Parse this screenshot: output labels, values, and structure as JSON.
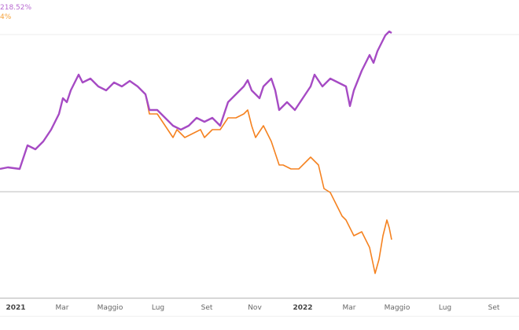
{
  "chart_data": {
    "type": "line",
    "title": "",
    "xlabel": "",
    "ylabel": "",
    "x_unit": "days since 2021-01-01",
    "y_unit": "percent change",
    "ylim": [
      -135,
      244
    ],
    "xlim": [
      -20,
      640
    ],
    "gridlines_y": [
      0,
      200
    ],
    "x_ticks": [
      {
        "day": 0,
        "label": "2021",
        "major": true
      },
      {
        "day": 59,
        "label": "Mar"
      },
      {
        "day": 120,
        "label": "Maggio"
      },
      {
        "day": 181,
        "label": "Lug"
      },
      {
        "day": 243,
        "label": "Set"
      },
      {
        "day": 304,
        "label": "Nov"
      },
      {
        "day": 365,
        "label": "2022",
        "major": true
      },
      {
        "day": 424,
        "label": "Mar"
      },
      {
        "day": 485,
        "label": "Maggio"
      },
      {
        "day": 546,
        "label": "Lug"
      },
      {
        "day": 608,
        "label": "Set"
      }
    ],
    "legend": [
      "218.52%",
      "4%"
    ],
    "series": [
      {
        "name": "purple",
        "color": "#a64bc4",
        "points": [
          [
            -20,
            29
          ],
          [
            -10,
            31
          ],
          [
            5,
            29
          ],
          [
            10,
            44
          ],
          [
            15,
            59
          ],
          [
            25,
            54
          ],
          [
            35,
            64
          ],
          [
            45,
            79
          ],
          [
            55,
            99
          ],
          [
            60,
            119
          ],
          [
            65,
            114
          ],
          [
            70,
            129
          ],
          [
            80,
            149
          ],
          [
            85,
            139
          ],
          [
            95,
            144
          ],
          [
            105,
            134
          ],
          [
            115,
            129
          ],
          [
            125,
            139
          ],
          [
            135,
            134
          ],
          [
            145,
            141
          ],
          [
            155,
            134
          ],
          [
            165,
            124
          ],
          [
            170,
            104
          ],
          [
            180,
            104
          ],
          [
            190,
            94
          ],
          [
            200,
            84
          ],
          [
            210,
            79
          ],
          [
            220,
            84
          ],
          [
            230,
            94
          ],
          [
            240,
            89
          ],
          [
            250,
            94
          ],
          [
            260,
            84
          ],
          [
            270,
            114
          ],
          [
            280,
            124
          ],
          [
            290,
            134
          ],
          [
            295,
            142
          ],
          [
            300,
            129
          ],
          [
            310,
            119
          ],
          [
            315,
            134
          ],
          [
            325,
            144
          ],
          [
            330,
            129
          ],
          [
            335,
            104
          ],
          [
            345,
            114
          ],
          [
            355,
            104
          ],
          [
            365,
            119
          ],
          [
            375,
            134
          ],
          [
            380,
            149
          ],
          [
            390,
            134
          ],
          [
            400,
            144
          ],
          [
            410,
            139
          ],
          [
            420,
            134
          ],
          [
            425,
            109
          ],
          [
            430,
            129
          ],
          [
            440,
            154
          ],
          [
            450,
            174
          ],
          [
            455,
            164
          ],
          [
            460,
            179
          ],
          [
            465,
            189
          ],
          [
            470,
            199
          ],
          [
            475,
            204
          ],
          [
            478,
            202
          ]
        ]
      },
      {
        "name": "orange",
        "color": "#f58220",
        "points": [
          [
            -20,
            29
          ],
          [
            -10,
            31
          ],
          [
            5,
            29
          ],
          [
            10,
            44
          ],
          [
            15,
            59
          ],
          [
            25,
            54
          ],
          [
            35,
            64
          ],
          [
            45,
            79
          ],
          [
            55,
            99
          ],
          [
            60,
            119
          ],
          [
            65,
            114
          ],
          [
            70,
            129
          ],
          [
            80,
            149
          ],
          [
            85,
            139
          ],
          [
            95,
            144
          ],
          [
            105,
            134
          ],
          [
            115,
            129
          ],
          [
            125,
            139
          ],
          [
            135,
            134
          ],
          [
            145,
            141
          ],
          [
            155,
            134
          ],
          [
            165,
            124
          ],
          [
            170,
            99
          ],
          [
            180,
            99
          ],
          [
            190,
            84
          ],
          [
            200,
            69
          ],
          [
            205,
            79
          ],
          [
            215,
            69
          ],
          [
            225,
            74
          ],
          [
            235,
            79
          ],
          [
            240,
            69
          ],
          [
            250,
            79
          ],
          [
            260,
            79
          ],
          [
            270,
            94
          ],
          [
            280,
            94
          ],
          [
            290,
            99
          ],
          [
            295,
            104
          ],
          [
            300,
            84
          ],
          [
            305,
            69
          ],
          [
            315,
            84
          ],
          [
            325,
            64
          ],
          [
            335,
            34
          ],
          [
            340,
            34
          ],
          [
            350,
            29
          ],
          [
            360,
            29
          ],
          [
            370,
            39
          ],
          [
            375,
            44
          ],
          [
            385,
            34
          ],
          [
            392,
            4
          ],
          [
            400,
            -1
          ],
          [
            410,
            -21
          ],
          [
            415,
            -31
          ],
          [
            420,
            -36
          ],
          [
            430,
            -56
          ],
          [
            440,
            -51
          ],
          [
            445,
            -61
          ],
          [
            450,
            -71
          ],
          [
            457,
            -104
          ],
          [
            462,
            -86
          ],
          [
            467,
            -56
          ],
          [
            472,
            -36
          ],
          [
            475,
            -46
          ],
          [
            478,
            -61
          ]
        ]
      }
    ]
  }
}
